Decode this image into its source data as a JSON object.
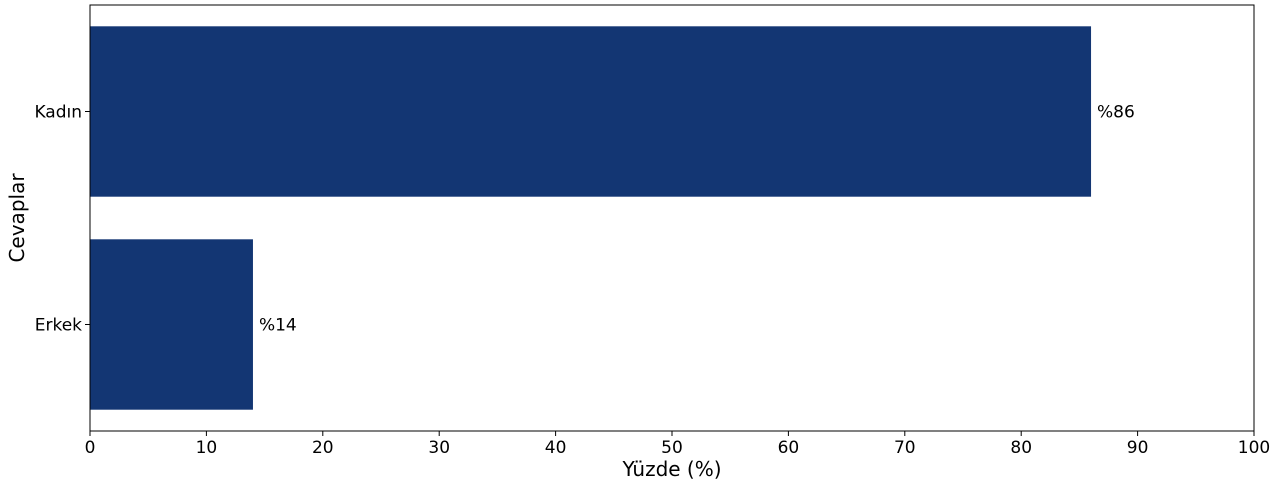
{
  "chart_data": {
    "type": "bar",
    "orientation": "horizontal",
    "categories": [
      "Kadın",
      "Erkek"
    ],
    "values": [
      86,
      14
    ],
    "data_labels": [
      "%86",
      "%14"
    ],
    "title": "",
    "xlabel": "Yüzde (%)",
    "ylabel": "Cevaplar",
    "xlim": [
      0,
      100
    ],
    "xticks": [
      0,
      10,
      20,
      30,
      40,
      50,
      60,
      70,
      80,
      90,
      100
    ],
    "grid": false,
    "legend": "none",
    "bar_color": "#133673"
  }
}
